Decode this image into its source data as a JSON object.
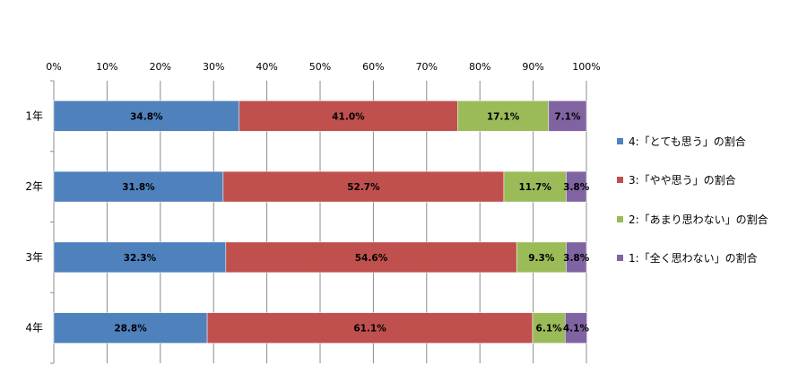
{
  "chart_data": {
    "type": "bar",
    "orientation": "horizontal",
    "stacked": "percent",
    "categories": [
      "1年",
      "2年",
      "3年",
      "4年"
    ],
    "x_ticks": [
      "0%",
      "10%",
      "20%",
      "30%",
      "40%",
      "50%",
      "60%",
      "70%",
      "80%",
      "90%",
      "100%"
    ],
    "xlim": [
      0,
      100
    ],
    "grid": true,
    "legend_position": "right",
    "series": [
      {
        "name": "4:「とても思う」の割合",
        "color": "#4F81BD",
        "values": [
          34.8,
          31.8,
          32.3,
          28.8
        ],
        "labels": [
          "34.8%",
          "31.8%",
          "32.3%",
          "28.8%"
        ]
      },
      {
        "name": "3:「やや思う」の割合",
        "color": "#C0504D",
        "values": [
          41.0,
          52.7,
          54.6,
          61.1
        ],
        "labels": [
          "41.0%",
          "52.7%",
          "54.6%",
          "61.1%"
        ]
      },
      {
        "name": "2:「あまり思わない」の割合",
        "color": "#9BBB59",
        "values": [
          17.1,
          11.7,
          9.3,
          6.1
        ],
        "labels": [
          "17.1%",
          "11.7%",
          "9.3%",
          "6.1%"
        ]
      },
      {
        "name": "1:「全く思わない」の割合",
        "color": "#8064A2",
        "values": [
          7.1,
          3.8,
          3.8,
          4.1
        ],
        "labels": [
          "7.1%",
          "3.8%",
          "3.8%",
          "4.1%"
        ]
      }
    ]
  }
}
